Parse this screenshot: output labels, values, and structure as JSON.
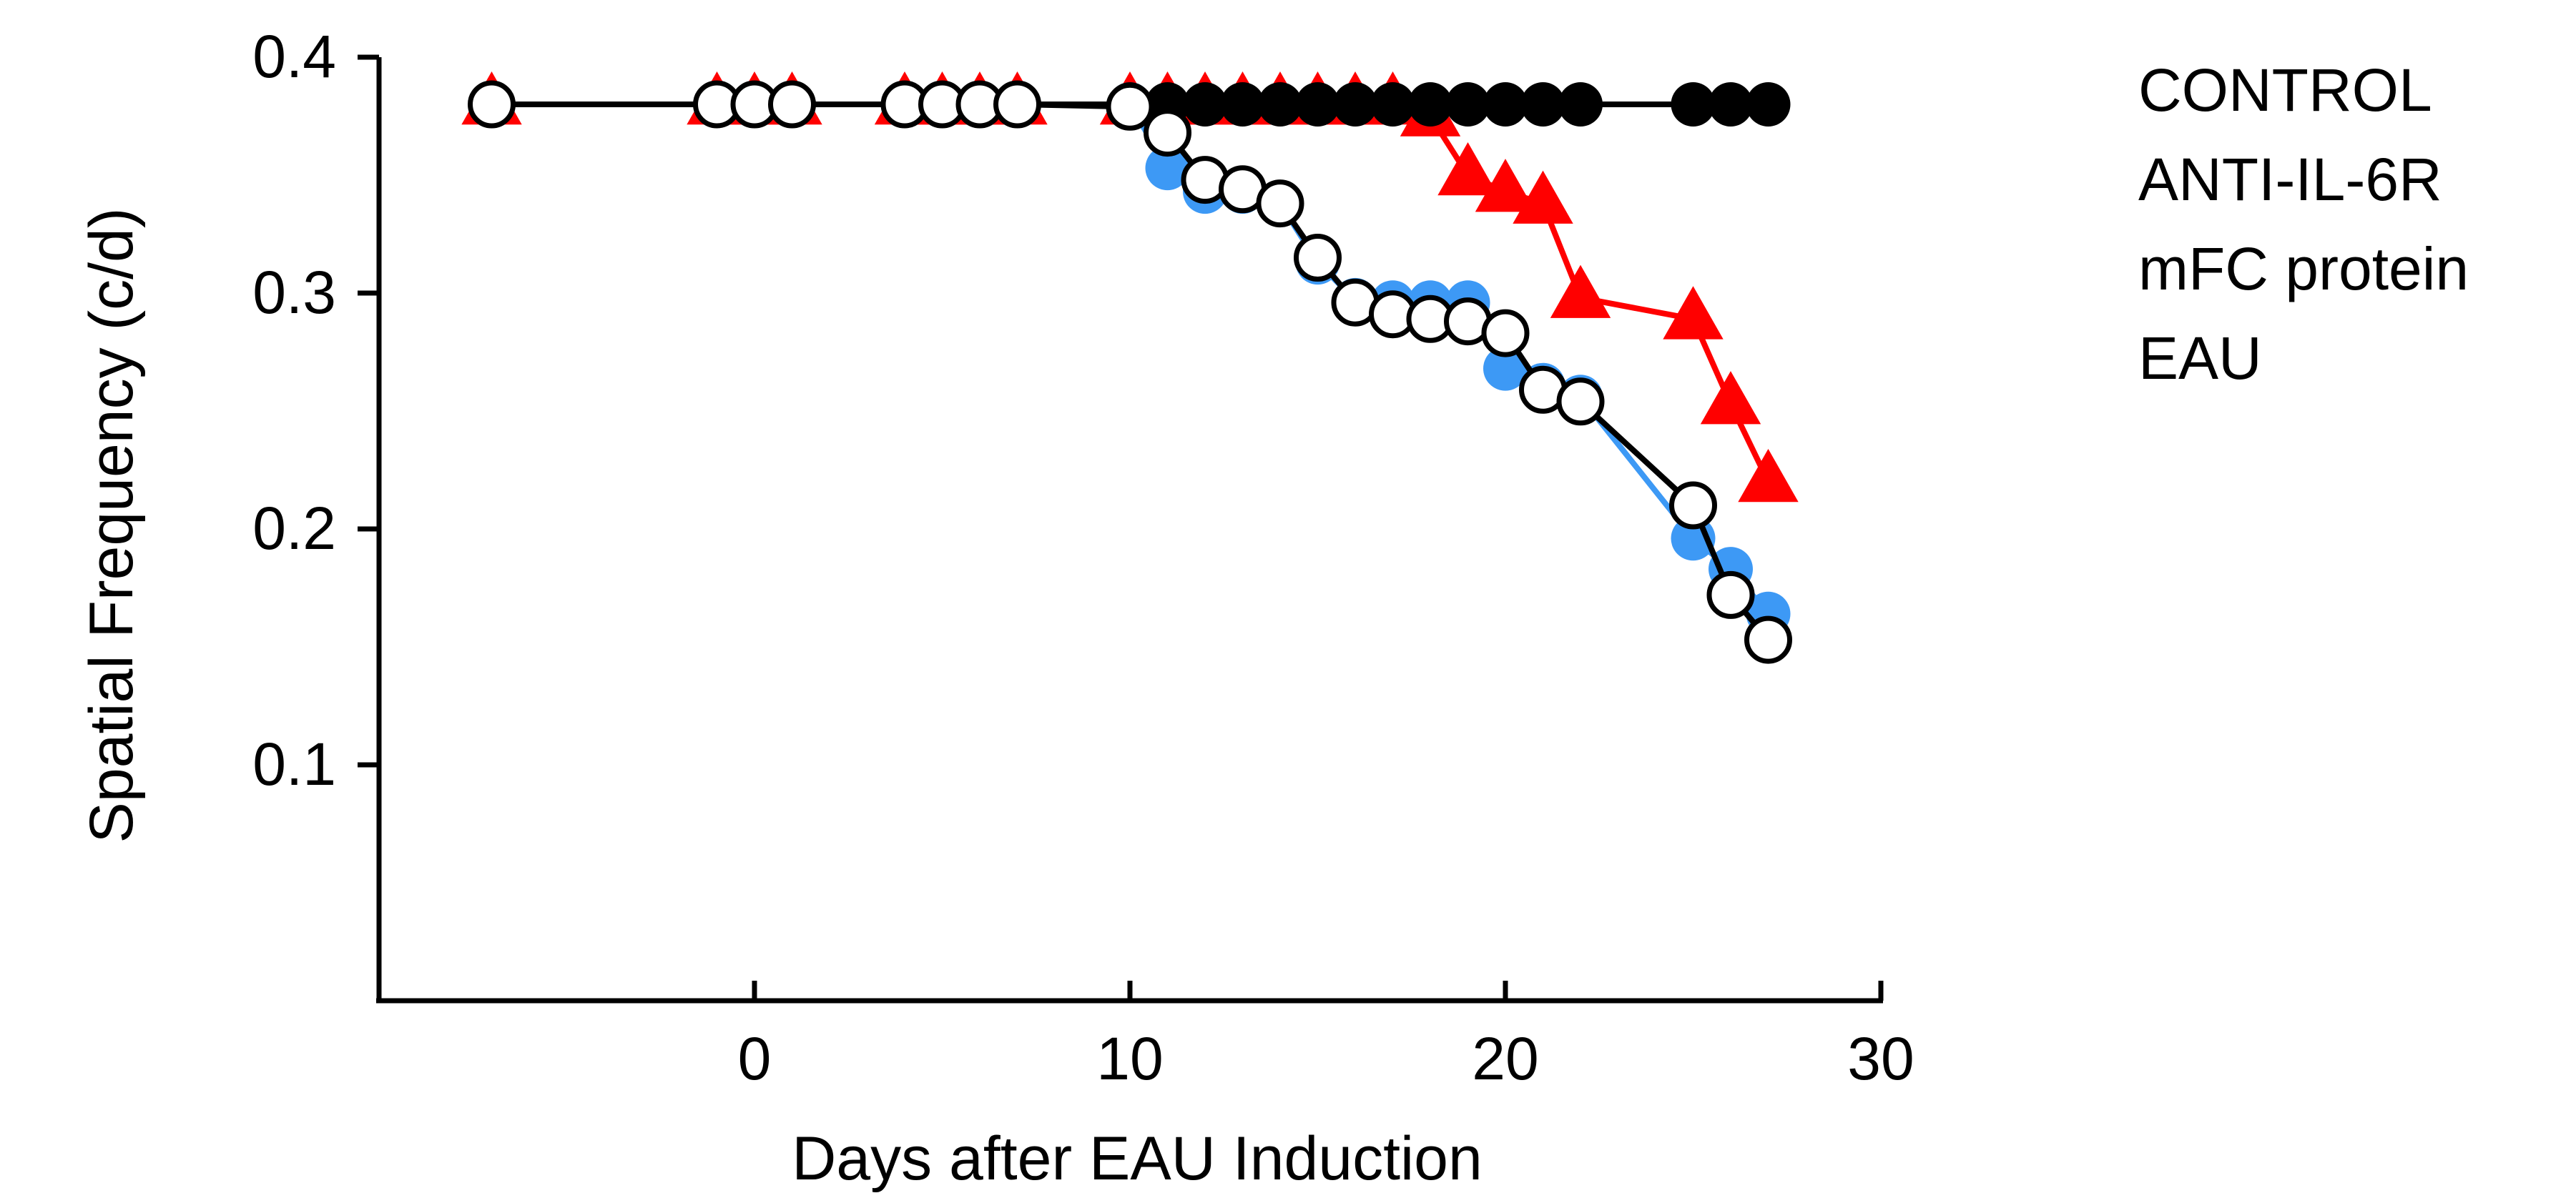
{
  "chart_data": {
    "type": "line",
    "title": "",
    "xlabel": "Days after EAU Induction",
    "ylabel": "Spatial Frequency (c/d)",
    "xlim": [
      -10,
      30
    ],
    "ylim": [
      0,
      0.4
    ],
    "xticks": [
      0,
      10,
      20,
      30
    ],
    "yticks": [
      0.1,
      0.2,
      0.3,
      0.4
    ],
    "xtick_labels": [
      "0",
      "10",
      "20",
      "30"
    ],
    "ytick_labels": [
      "0.1",
      "0.2",
      "0.3",
      "0.4"
    ],
    "grid": false,
    "legend_position": "top-right",
    "legend": [
      "CONTROL",
      "ANTI-IL-6R",
      "mFC protein",
      "EAU"
    ],
    "series": [
      {
        "name": "ANTI-IL-6R",
        "color": "#ff0000",
        "marker": "triangle",
        "x": [
          -7,
          -1,
          0,
          1,
          4,
          5,
          6,
          7,
          10,
          11,
          12,
          13,
          14,
          15,
          16,
          17,
          18,
          19,
          20,
          21,
          22,
          25,
          26,
          27
        ],
        "y": [
          0.38,
          0.38,
          0.38,
          0.38,
          0.38,
          0.38,
          0.38,
          0.38,
          0.38,
          0.38,
          0.38,
          0.38,
          0.38,
          0.38,
          0.38,
          0.38,
          0.375,
          0.35,
          0.343,
          0.338,
          0.298,
          0.289,
          0.253,
          0.22
        ]
      },
      {
        "name": "mFC protein",
        "color": "#3d99f5",
        "marker": "filled-circle",
        "x": [
          -7,
          -1,
          0,
          1,
          4,
          5,
          6,
          7,
          10,
          11,
          12,
          13,
          14,
          15,
          16,
          17,
          18,
          19,
          20,
          21,
          22,
          25,
          26,
          27
        ],
        "y": [
          0.38,
          0.38,
          0.38,
          0.38,
          0.38,
          0.38,
          0.38,
          0.38,
          0.38,
          0.353,
          0.343,
          0.343,
          0.338,
          0.313,
          0.297,
          0.296,
          0.296,
          0.296,
          0.268,
          0.261,
          0.256,
          0.196,
          0.183,
          0.164
        ]
      },
      {
        "name": "CONTROL",
        "color": "#000000",
        "marker": "filled-circle",
        "x": [
          -7,
          -1,
          0,
          1,
          4,
          5,
          6,
          7,
          10,
          11,
          12,
          13,
          14,
          15,
          16,
          17,
          18,
          19,
          20,
          21,
          22,
          25,
          26,
          27
        ],
        "y": [
          0.38,
          0.38,
          0.38,
          0.38,
          0.38,
          0.38,
          0.38,
          0.38,
          0.38,
          0.38,
          0.38,
          0.38,
          0.38,
          0.38,
          0.38,
          0.38,
          0.38,
          0.38,
          0.38,
          0.38,
          0.38,
          0.38,
          0.38,
          0.38
        ]
      },
      {
        "name": "EAU",
        "color": "#000000",
        "marker": "open-circle",
        "x": [
          -7,
          -1,
          0,
          1,
          4,
          5,
          6,
          7,
          10,
          11,
          12,
          13,
          14,
          15,
          16,
          17,
          18,
          19,
          20,
          21,
          22,
          25,
          26,
          27
        ],
        "y": [
          0.38,
          0.38,
          0.38,
          0.38,
          0.38,
          0.38,
          0.38,
          0.38,
          0.379,
          0.368,
          0.348,
          0.344,
          0.338,
          0.315,
          0.296,
          0.291,
          0.289,
          0.288,
          0.283,
          0.259,
          0.254,
          0.21,
          0.172,
          0.153
        ]
      }
    ]
  }
}
